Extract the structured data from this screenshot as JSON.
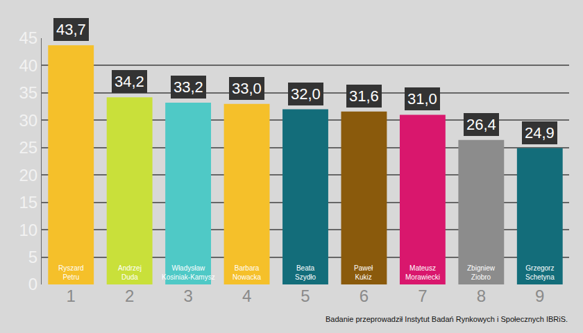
{
  "chart_data": {
    "type": "bar",
    "categories": [
      "1",
      "2",
      "3",
      "4",
      "5",
      "6",
      "7",
      "8",
      "9"
    ],
    "names": [
      "Ryszard Petru",
      "Andrzej Duda",
      "Władysław Kosiniak-Kamysz",
      "Barbara Nowacka",
      "Beata Szydło",
      "Paweł Kukiz",
      "Mateusz Morawiecki",
      "Zbigniew Ziobro",
      "Grzegorz Schetyna"
    ],
    "values": [
      43.7,
      34.2,
      33.2,
      33.0,
      32.0,
      31.6,
      31.0,
      26.4,
      24.9
    ],
    "value_labels": [
      "43,7",
      "34,2",
      "33,2",
      "33,0",
      "32,0",
      "31,6",
      "31,0",
      "26,4",
      "24,9"
    ],
    "colors": [
      "#f5c02a",
      "#c9e03a",
      "#4fc9c6",
      "#f5c02a",
      "#136d7a",
      "#8a5a0c",
      "#d9176d",
      "#8c8c8c",
      "#136d7a"
    ],
    "ylim": [
      0,
      45
    ],
    "yticks": [
      0,
      5,
      10,
      15,
      20,
      25,
      30,
      35,
      40,
      45
    ],
    "grid": true,
    "data_labels": true,
    "note": "Badanie przeprowadził Instytut Badań Rynkowych i Społecznych IBRiS."
  }
}
